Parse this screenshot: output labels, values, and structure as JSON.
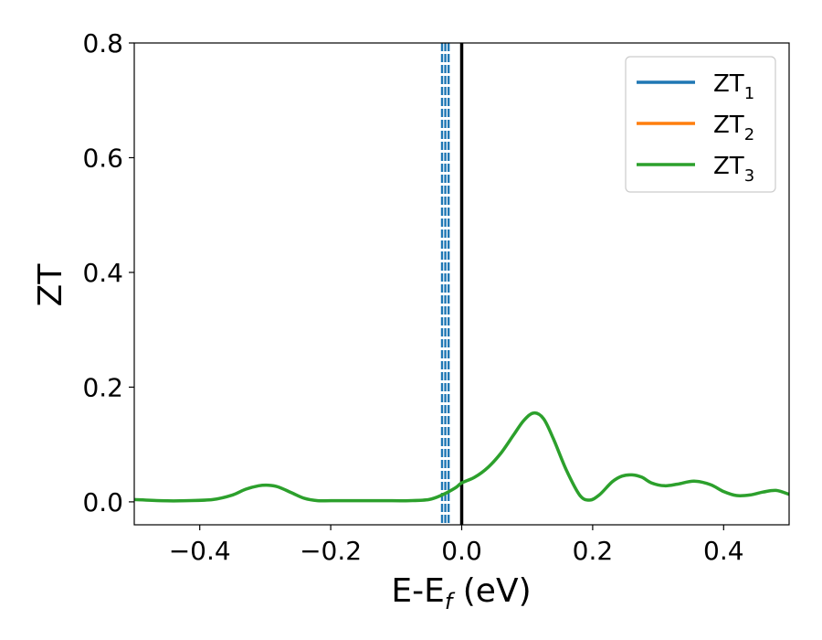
{
  "chart_data": {
    "type": "line",
    "xlabel": {
      "main": "E-E",
      "sub": "f",
      "tail": " (eV)"
    },
    "ylabel": "ZT",
    "xlim": [
      -0.5,
      0.5
    ],
    "ylim": [
      -0.04,
      0.8
    ],
    "xticks": [
      {
        "value": -0.4,
        "label": "−0.4"
      },
      {
        "value": -0.2,
        "label": "−0.2"
      },
      {
        "value": 0.0,
        "label": "0.0"
      },
      {
        "value": 0.2,
        "label": "0.2"
      },
      {
        "value": 0.4,
        "label": "0.4"
      }
    ],
    "yticks": [
      {
        "value": 0.0,
        "label": "0.0"
      },
      {
        "value": 0.2,
        "label": "0.2"
      },
      {
        "value": 0.4,
        "label": "0.4"
      },
      {
        "value": 0.6,
        "label": "0.6"
      },
      {
        "value": 0.8,
        "label": "0.8"
      }
    ],
    "grid": false,
    "legend": {
      "placement": "top-right"
    },
    "series": [
      {
        "name": "ZT",
        "sub": "1",
        "color": "#1f77b4",
        "x": [],
        "y": []
      },
      {
        "name": "ZT",
        "sub": "2",
        "color": "#ff7f0e",
        "x": [],
        "y": []
      },
      {
        "name": "ZT",
        "sub": "3",
        "color": "#2ca02c",
        "x": [
          -0.5,
          -0.46,
          -0.42,
          -0.38,
          -0.35,
          -0.33,
          -0.31,
          -0.295,
          -0.28,
          -0.26,
          -0.24,
          -0.22,
          -0.2,
          -0.16,
          -0.12,
          -0.08,
          -0.05,
          -0.03,
          -0.01,
          0.0,
          0.02,
          0.04,
          0.06,
          0.08,
          0.095,
          0.11,
          0.125,
          0.14,
          0.16,
          0.18,
          0.195,
          0.21,
          0.23,
          0.245,
          0.26,
          0.275,
          0.29,
          0.31,
          0.33,
          0.355,
          0.38,
          0.4,
          0.42,
          0.44,
          0.46,
          0.48,
          0.5
        ],
        "y": [
          0.004,
          0.002,
          0.002,
          0.004,
          0.012,
          0.022,
          0.028,
          0.029,
          0.026,
          0.016,
          0.006,
          0.002,
          0.002,
          0.002,
          0.002,
          0.002,
          0.004,
          0.012,
          0.024,
          0.033,
          0.043,
          0.06,
          0.085,
          0.118,
          0.142,
          0.155,
          0.145,
          0.11,
          0.055,
          0.012,
          0.003,
          0.012,
          0.035,
          0.045,
          0.047,
          0.043,
          0.033,
          0.028,
          0.031,
          0.036,
          0.03,
          0.018,
          0.011,
          0.012,
          0.017,
          0.02,
          0.013
        ]
      }
    ],
    "vlines": [
      {
        "x": -0.03,
        "style": "dashed",
        "color": "#1f77b4"
      },
      {
        "x": -0.025,
        "style": "dashed",
        "color": "#1f77b4"
      },
      {
        "x": -0.02,
        "style": "dashed",
        "color": "#1f77b4"
      },
      {
        "x": 0.0,
        "style": "solid",
        "color": "#000000"
      }
    ]
  }
}
